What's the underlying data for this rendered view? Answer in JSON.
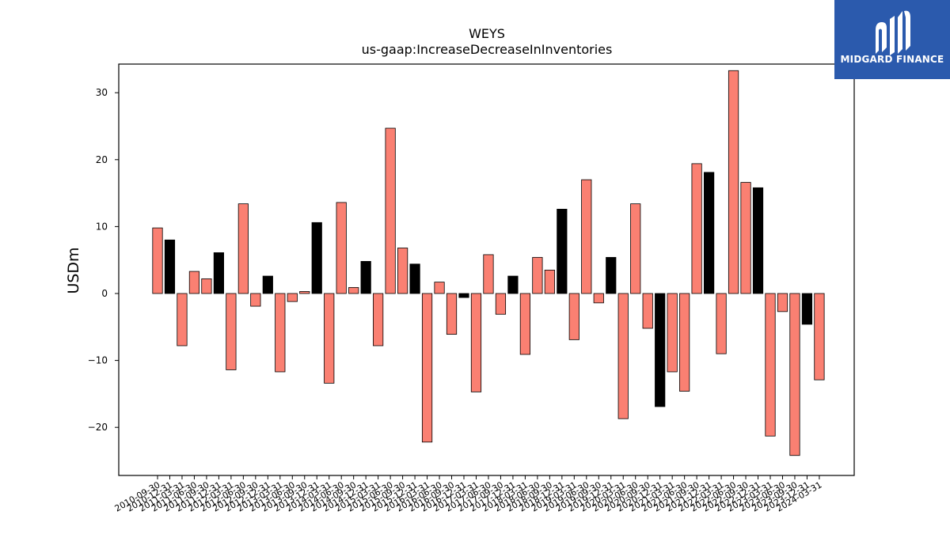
{
  "brand": {
    "name": "MIDGARD FINANCE",
    "logo_icon": "midgard-m-logo-icon",
    "background": "#2b5aad"
  },
  "chart_data": {
    "type": "bar",
    "title": "WEYS",
    "subtitle": "us-gaap:IncreaseDecreaseInInventories",
    "xlabel": "",
    "ylabel": "USDm",
    "ylim": [
      -27.1,
      34.2
    ],
    "yticks": [
      -20,
      -10,
      0,
      10,
      20,
      30
    ],
    "grid": false,
    "legend": "none",
    "colors": {
      "quarter": "#fa8072",
      "annual": "#000000",
      "edge": "#000000"
    },
    "bars": [
      {
        "date": "2010-09-30",
        "value": 9.8,
        "kind": "quarter"
      },
      {
        "date": "2010-12-31",
        "value": 8.0,
        "kind": "annual"
      },
      {
        "date": "2011-03-31",
        "value": -7.8,
        "kind": "quarter"
      },
      {
        "date": "2011-06-30",
        "value": 3.3,
        "kind": "quarter"
      },
      {
        "date": "2011-09-30",
        "value": 2.2,
        "kind": "quarter"
      },
      {
        "date": "2011-12-31",
        "value": 6.1,
        "kind": "annual"
      },
      {
        "date": "2012-03-31",
        "value": -11.4,
        "kind": "quarter"
      },
      {
        "date": "2012-06-30",
        "value": 13.4,
        "kind": "quarter"
      },
      {
        "date": "2012-09-30",
        "value": -1.9,
        "kind": "quarter"
      },
      {
        "date": "2012-12-31",
        "value": 2.6,
        "kind": "annual"
      },
      {
        "date": "2013-03-31",
        "value": -11.7,
        "kind": "quarter"
      },
      {
        "date": "2013-06-30",
        "value": -1.2,
        "kind": "quarter"
      },
      {
        "date": "2013-09-30",
        "value": 0.3,
        "kind": "quarter"
      },
      {
        "date": "2013-12-31",
        "value": 10.6,
        "kind": "annual"
      },
      {
        "date": "2014-03-31",
        "value": -13.4,
        "kind": "quarter"
      },
      {
        "date": "2014-06-30",
        "value": 13.6,
        "kind": "quarter"
      },
      {
        "date": "2014-09-30",
        "value": 0.9,
        "kind": "quarter"
      },
      {
        "date": "2014-12-31",
        "value": 4.8,
        "kind": "annual"
      },
      {
        "date": "2015-03-31",
        "value": -7.8,
        "kind": "quarter"
      },
      {
        "date": "2015-06-30",
        "value": 24.7,
        "kind": "quarter"
      },
      {
        "date": "2015-09-30",
        "value": 6.8,
        "kind": "quarter"
      },
      {
        "date": "2015-12-31",
        "value": 4.4,
        "kind": "annual"
      },
      {
        "date": "2016-03-31",
        "value": -22.2,
        "kind": "quarter"
      },
      {
        "date": "2016-06-30",
        "value": 1.7,
        "kind": "quarter"
      },
      {
        "date": "2016-09-30",
        "value": -6.1,
        "kind": "quarter"
      },
      {
        "date": "2016-12-31",
        "value": -0.6,
        "kind": "annual"
      },
      {
        "date": "2017-03-31",
        "value": -14.7,
        "kind": "quarter"
      },
      {
        "date": "2017-06-30",
        "value": 5.8,
        "kind": "quarter"
      },
      {
        "date": "2017-09-30",
        "value": -3.1,
        "kind": "quarter"
      },
      {
        "date": "2017-12-31",
        "value": 2.6,
        "kind": "annual"
      },
      {
        "date": "2018-03-31",
        "value": -9.1,
        "kind": "quarter"
      },
      {
        "date": "2018-06-30",
        "value": 5.4,
        "kind": "quarter"
      },
      {
        "date": "2018-09-30",
        "value": 3.5,
        "kind": "quarter"
      },
      {
        "date": "2018-12-31",
        "value": 12.6,
        "kind": "annual"
      },
      {
        "date": "2019-03-31",
        "value": -6.9,
        "kind": "quarter"
      },
      {
        "date": "2019-06-30",
        "value": 17.0,
        "kind": "quarter"
      },
      {
        "date": "2019-09-30",
        "value": -1.4,
        "kind": "quarter"
      },
      {
        "date": "2019-12-31",
        "value": 5.4,
        "kind": "annual"
      },
      {
        "date": "2020-03-31",
        "value": -18.7,
        "kind": "quarter"
      },
      {
        "date": "2020-06-30",
        "value": 13.4,
        "kind": "quarter"
      },
      {
        "date": "2020-09-30",
        "value": -5.2,
        "kind": "quarter"
      },
      {
        "date": "2020-12-31",
        "value": -16.9,
        "kind": "annual"
      },
      {
        "date": "2021-03-31",
        "value": -11.7,
        "kind": "quarter"
      },
      {
        "date": "2021-06-30",
        "value": -14.6,
        "kind": "quarter"
      },
      {
        "date": "2021-09-30",
        "value": 19.4,
        "kind": "quarter"
      },
      {
        "date": "2021-12-31",
        "value": 18.1,
        "kind": "annual"
      },
      {
        "date": "2022-03-31",
        "value": -9.0,
        "kind": "quarter"
      },
      {
        "date": "2022-06-30",
        "value": 33.3,
        "kind": "quarter"
      },
      {
        "date": "2022-09-30",
        "value": 16.6,
        "kind": "quarter"
      },
      {
        "date": "2022-12-31",
        "value": 15.8,
        "kind": "annual"
      },
      {
        "date": "2023-03-31",
        "value": -21.3,
        "kind": "quarter"
      },
      {
        "date": "2023-06-30",
        "value": -2.7,
        "kind": "quarter"
      },
      {
        "date": "2023-09-30",
        "value": -24.2,
        "kind": "quarter"
      },
      {
        "date": "2023-12-31",
        "value": -4.6,
        "kind": "annual"
      },
      {
        "date": "2024-03-31",
        "value": -12.9,
        "kind": "quarter"
      }
    ]
  }
}
